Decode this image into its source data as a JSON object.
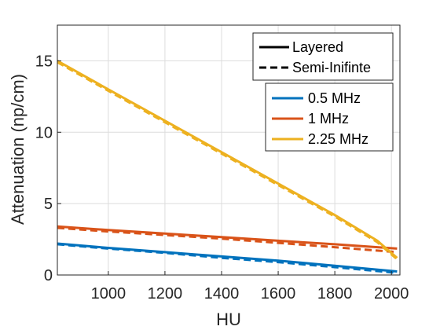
{
  "chart_data": {
    "type": "line",
    "xlabel": "HU",
    "ylabel": "Attenuation (np/cm)",
    "xlim": [
      820,
      2030
    ],
    "ylim": [
      0,
      17.5
    ],
    "xticks": [
      1000,
      1200,
      1400,
      1600,
      1800,
      2000
    ],
    "yticks": [
      0,
      5,
      10,
      15
    ],
    "grid": true,
    "style_legend": {
      "placement": "top-right",
      "entries": [
        {
          "label": "Layered",
          "dash": "solid"
        },
        {
          "label": "Semi-Inifinte",
          "dash": "dashed"
        }
      ]
    },
    "color_legend": {
      "placement": "upper-right",
      "entries": [
        "0.5 MHz",
        "1 MHz",
        "2.25 MHz"
      ]
    },
    "series": [
      {
        "name": "0.5 MHz",
        "color": "#0072BD",
        "model": "Layered",
        "x": [
          820,
          1000,
          1200,
          1400,
          1600,
          1800,
          2020
        ],
        "y": [
          2.2,
          1.9,
          1.6,
          1.3,
          1.0,
          0.65,
          0.25
        ]
      },
      {
        "name": "0.5 MHz",
        "color": "#0072BD",
        "model": "Semi-Inifinte",
        "x": [
          820,
          1000,
          1200,
          1400,
          1600,
          1800,
          2020
        ],
        "y": [
          2.15,
          1.85,
          1.55,
          1.2,
          0.9,
          0.55,
          0.15
        ]
      },
      {
        "name": "1 MHz",
        "color": "#D95319",
        "model": "Layered",
        "x": [
          820,
          1000,
          1200,
          1400,
          1600,
          1800,
          2020
        ],
        "y": [
          3.4,
          3.15,
          2.9,
          2.65,
          2.4,
          2.15,
          1.85
        ]
      },
      {
        "name": "1 MHz",
        "color": "#D95319",
        "model": "Semi-Inifinte",
        "x": [
          820,
          1000,
          1200,
          1400,
          1600,
          1800,
          2020
        ],
        "y": [
          3.3,
          3.05,
          2.8,
          2.55,
          2.25,
          1.95,
          1.6
        ]
      },
      {
        "name": "2.25 MHz",
        "color": "#EDB120",
        "model": "Layered",
        "x": [
          820,
          1000,
          1200,
          1400,
          1600,
          1800,
          1950,
          2020
        ],
        "y": [
          15.0,
          13.0,
          10.8,
          8.6,
          6.4,
          4.2,
          2.4,
          1.2
        ]
      },
      {
        "name": "2.25 MHz",
        "color": "#EDB120",
        "model": "Semi-Inifinte",
        "x": [
          820,
          1000,
          1200,
          1400,
          1600,
          1800,
          1950,
          2020
        ],
        "y": [
          14.9,
          12.9,
          10.7,
          8.5,
          6.3,
          4.1,
          2.3,
          1.1
        ]
      }
    ]
  }
}
